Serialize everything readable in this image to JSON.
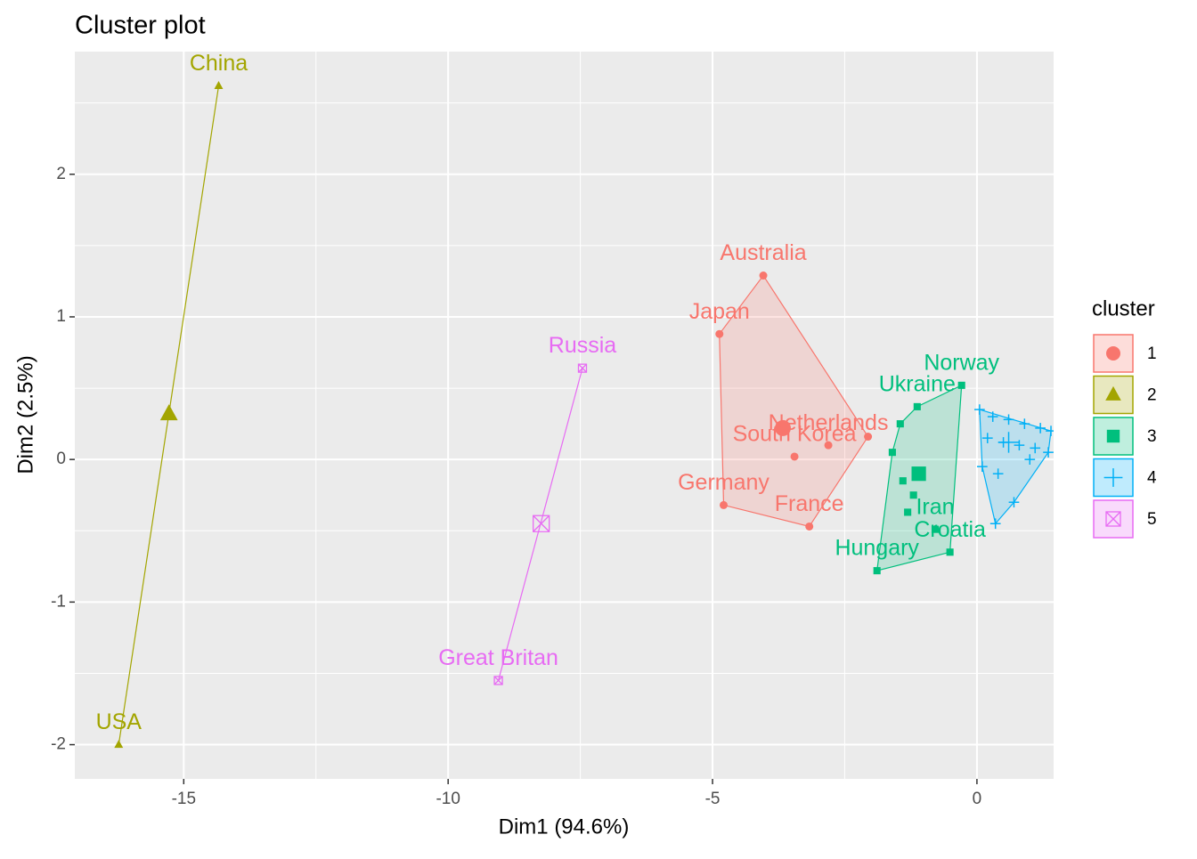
{
  "chart_data": {
    "type": "scatter",
    "title": "Cluster plot",
    "x_label": "Dim1 (94.6%)",
    "y_label": "Dim2 (2.5%)",
    "xlim": [
      -17.06,
      1.45
    ],
    "ylim": [
      -2.24,
      2.86
    ],
    "xticks": [
      -15,
      -10,
      -5,
      0
    ],
    "yticks": [
      -2,
      -1,
      0,
      1,
      2
    ],
    "x_minor_ticks": [
      -12.5,
      -7.5,
      -2.5
    ],
    "y_minor_ticks": [
      -1.5,
      -0.5,
      0.5,
      1.5,
      2.5
    ],
    "grid": true,
    "legend_title": "cluster",
    "legend": "right",
    "series": [
      {
        "name": "1",
        "color": "#F8766D",
        "shape": "circle",
        "x": [
          -4.04,
          -4.87,
          -4.79,
          -3.17,
          -3.45,
          -2.81,
          -2.06
        ],
        "y": [
          1.29,
          0.88,
          -0.32,
          -0.47,
          0.02,
          0.1,
          0.16
        ],
        "labels": [
          "Australia",
          "Japan",
          "Germany",
          "France",
          "South Korea",
          "Netherlands",
          null
        ],
        "center": [
          -3.67,
          0.22
        ]
      },
      {
        "name": "2",
        "color": "#A3A500",
        "shape": "triangle",
        "x": [
          -14.34,
          -16.23
        ],
        "y": [
          2.62,
          -2.0
        ],
        "labels": [
          "China",
          "USA"
        ],
        "center": [
          -15.28,
          0.32
        ]
      },
      {
        "name": "3",
        "color": "#00BF7D",
        "shape": "square",
        "x": [
          -1.89,
          -0.51,
          -0.79,
          -1.31,
          -0.29,
          -1.13,
          -1.45,
          -1.6,
          -1.4,
          -1.2
        ],
        "y": [
          -0.78,
          -0.65,
          -0.49,
          -0.37,
          0.52,
          0.37,
          0.25,
          0.05,
          -0.15,
          -0.25
        ],
        "labels": [
          "Hungary",
          "Croatia",
          "Iran",
          null,
          "Norway",
          "Ukraine",
          null,
          null,
          null,
          null
        ],
        "center": [
          -1.1,
          -0.1
        ]
      },
      {
        "name": "4",
        "color": "#00B0F6",
        "shape": "plus",
        "x": [
          0.05,
          0.3,
          0.6,
          0.9,
          1.2,
          1.4,
          0.2,
          0.5,
          0.8,
          1.1,
          1.35,
          0.1,
          0.4,
          0.35,
          0.7,
          1.0
        ],
        "y": [
          0.35,
          0.3,
          0.28,
          0.25,
          0.22,
          0.2,
          0.15,
          0.12,
          0.1,
          0.08,
          0.05,
          -0.05,
          -0.1,
          -0.45,
          -0.3,
          0.0
        ],
        "labels": [
          null,
          null,
          null,
          null,
          null,
          null,
          null,
          null,
          null,
          null,
          null,
          null,
          null,
          null,
          null,
          null
        ],
        "center": [
          0.6,
          0.12
        ]
      },
      {
        "name": "5",
        "color": "#E76BF3",
        "shape": "squarecross",
        "x": [
          -7.46,
          -9.05
        ],
        "y": [
          0.64,
          -1.55
        ],
        "labels": [
          "Russia",
          "Great Britan"
        ],
        "center": [
          -8.24,
          -0.45
        ]
      }
    ]
  }
}
